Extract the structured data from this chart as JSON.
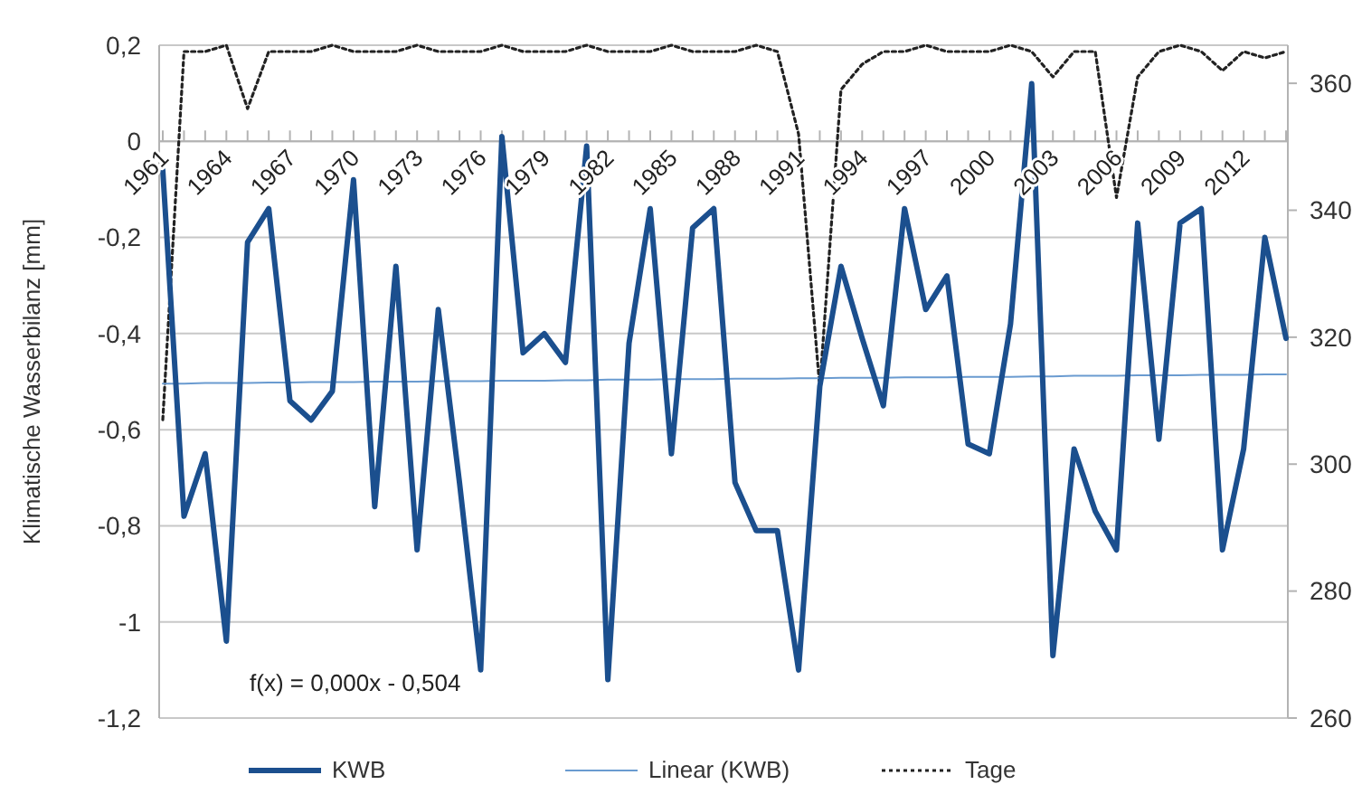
{
  "chart_data": {
    "type": "line",
    "ylabel": "Klimatische Wasserbilanz [mm]",
    "categories": [
      "1961",
      null,
      null,
      "1964",
      null,
      null,
      "1967",
      null,
      null,
      "1970",
      null,
      null,
      "1973",
      null,
      null,
      "1976",
      null,
      null,
      "1979",
      null,
      null,
      "1982",
      null,
      null,
      "1985",
      null,
      null,
      "1988",
      null,
      null,
      "1991",
      null,
      null,
      "1994",
      null,
      null,
      "1997",
      null,
      null,
      "2000",
      null,
      null,
      "2003",
      null,
      null,
      "2006",
      null,
      null,
      "2009",
      null,
      null,
      "2012",
      null,
      null
    ],
    "series": [
      {
        "name": "KWB",
        "color": "#1b4f8e",
        "values": [
          -0.06,
          -0.78,
          -0.65,
          -1.04,
          -0.21,
          -0.14,
          -0.54,
          -0.58,
          -0.52,
          -0.08,
          -0.76,
          -0.26,
          -0.85,
          -0.35,
          -0.71,
          -1.1,
          0.01,
          -0.44,
          -0.4,
          -0.46,
          -0.01,
          -1.12,
          -0.42,
          -0.14,
          -0.65,
          -0.18,
          -0.14,
          -0.71,
          -0.81,
          -0.81,
          -1.1,
          -0.51,
          -0.26,
          -0.41,
          -0.55,
          -0.14,
          -0.35,
          -0.28,
          -0.63,
          -0.65,
          -0.38,
          0.12,
          -1.07,
          -0.64,
          -0.77,
          -0.85,
          -0.17,
          -0.62,
          -0.17,
          -0.14,
          -0.85,
          -0.64,
          -0.2,
          -0.41
        ]
      },
      {
        "name": "Linear (KWB)",
        "color": "#6a9bd0",
        "values": [
          -0.504,
          -0.504,
          -0.503,
          -0.503,
          -0.503,
          -0.502,
          -0.502,
          -0.501,
          -0.501,
          -0.501,
          -0.5,
          -0.5,
          -0.5,
          -0.499,
          -0.499,
          -0.499,
          -0.498,
          -0.498,
          -0.498,
          -0.497,
          -0.497,
          -0.496,
          -0.496,
          -0.496,
          -0.495,
          -0.495,
          -0.495,
          -0.494,
          -0.494,
          -0.494,
          -0.493,
          -0.493,
          -0.492,
          -0.492,
          -0.492,
          -0.491,
          -0.491,
          -0.491,
          -0.49,
          -0.49,
          -0.49,
          -0.489,
          -0.489,
          -0.488,
          -0.488,
          -0.488,
          -0.487,
          -0.487,
          -0.487,
          -0.486,
          -0.486,
          -0.486,
          -0.485,
          -0.485
        ]
      },
      {
        "name": "Tage",
        "color": "#222222",
        "axis": "y2",
        "line_style": "dotted",
        "values": [
          307,
          365,
          365,
          366,
          356,
          365,
          365,
          365,
          366,
          365,
          365,
          365,
          366,
          365,
          365,
          365,
          366,
          365,
          365,
          365,
          366,
          365,
          365,
          365,
          366,
          365,
          365,
          365,
          366,
          365,
          352,
          312,
          359,
          363,
          365,
          365,
          366,
          365,
          365,
          365,
          366,
          365,
          361,
          365,
          365,
          342,
          361,
          365,
          366,
          365,
          362,
          365,
          364,
          365
        ]
      }
    ],
    "ylim": [
      -1.2,
      0.2
    ],
    "yticks": [
      {
        "value": -1.2,
        "label": "-1,2"
      },
      {
        "value": -1,
        "label": "-1"
      },
      {
        "value": -0.8,
        "label": "-0,8"
      },
      {
        "value": -0.6,
        "label": "-0,6"
      },
      {
        "value": -0.4,
        "label": "-0,4"
      },
      {
        "value": -0.2,
        "label": "-0,2"
      },
      0,
      {
        "value": 0.2,
        "label": "0,2"
      }
    ],
    "y2lim": [
      260,
      366
    ],
    "y2ticks": [
      260,
      280,
      300,
      320,
      340,
      360
    ],
    "annotations": [
      "f(x) = 0,000x - 0,504"
    ],
    "grid": "y",
    "legend": "bottom",
    "marker": "none",
    "line_style": "solid"
  }
}
